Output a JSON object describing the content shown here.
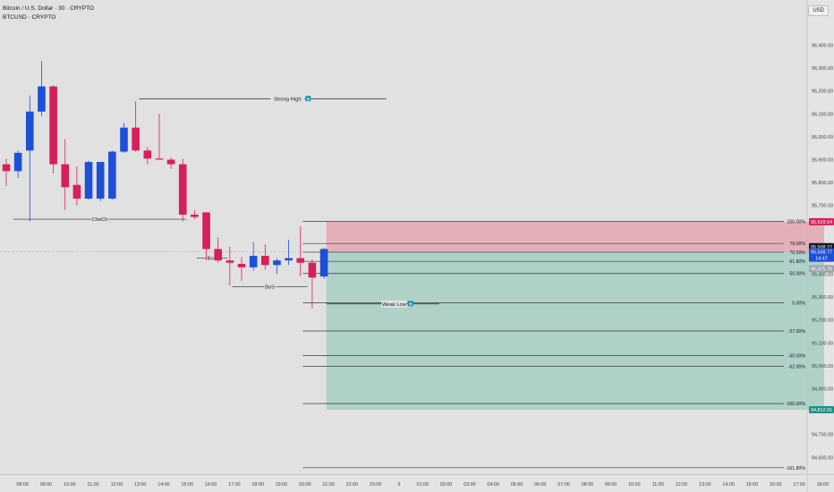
{
  "header": {
    "title": "Bitcoin / U.S. Dollar · 30 · CRYPTO",
    "subtitle": "BTCUSD · CRYPTO"
  },
  "currency_badge": "USD",
  "colors": {
    "background": "#e1e1e1",
    "up": "#1e4fd8",
    "down": "#d81e5b",
    "stop_zone": "#e3a7b2",
    "target_zone": "#a6cec3",
    "fib_line": "#3a3a3a",
    "level_line": "#2a2a2a"
  },
  "chart_data": {
    "type": "candlestick",
    "ylim": [
      94600,
      96500
    ],
    "y_ticks": [
      94600,
      94700,
      94900,
      95000,
      95100,
      95200,
      95300,
      95400,
      95700,
      95800,
      95900,
      96000,
      96100,
      96200,
      96300,
      96400
    ],
    "y_tick_labels": [
      "94,600.00",
      "94,700.00",
      "94,900.00",
      "95,000.00",
      "95,100.00",
      "95,200.00",
      "95,300.00",
      "95,400.00",
      "95,700.00",
      "95,800.00",
      "95,900.00",
      "96,000.00",
      "96,100.00",
      "96,200.00",
      "96,300.00",
      "96,400.00"
    ],
    "x_ticks": [
      {
        "label": "08:00",
        "i": 1
      },
      {
        "label": "09:00",
        "i": 3
      },
      {
        "label": "10:00",
        "i": 5
      },
      {
        "label": "11:00",
        "i": 7
      },
      {
        "label": "12:00",
        "i": 9
      },
      {
        "label": "13:00",
        "i": 11
      },
      {
        "label": "14:00",
        "i": 13
      },
      {
        "label": "15:00",
        "i": 15
      },
      {
        "label": "16:00",
        "i": 17
      },
      {
        "label": "17:00",
        "i": 19
      },
      {
        "label": "18:00",
        "i": 21
      },
      {
        "label": "19:00",
        "i": 23
      },
      {
        "label": "20:00",
        "i": 25
      },
      {
        "label": "21:00",
        "i": 27
      },
      {
        "label": "22:00",
        "i": 29
      },
      {
        "label": "23:00",
        "i": 31
      },
      {
        "label": "5",
        "i": 33
      },
      {
        "label": "01:00",
        "i": 35
      },
      {
        "label": "02:00",
        "i": 37
      },
      {
        "label": "03:00",
        "i": 39
      },
      {
        "label": "04:00",
        "i": 41
      },
      {
        "label": "05:00",
        "i": 43
      },
      {
        "label": "06:00",
        "i": 45
      },
      {
        "label": "07:00",
        "i": 47
      },
      {
        "label": "08:00",
        "i": 49
      },
      {
        "label": "09:00",
        "i": 51
      },
      {
        "label": "10:00",
        "i": 53
      },
      {
        "label": "11:00",
        "i": 55
      },
      {
        "label": "12:00",
        "i": 57
      },
      {
        "label": "13:00",
        "i": 59
      },
      {
        "label": "14:00",
        "i": 61
      },
      {
        "label": "15:00",
        "i": 63
      },
      {
        "label": "16:00",
        "i": 65
      },
      {
        "label": "17:00",
        "i": 67
      },
      {
        "label": "18:00",
        "i": 69
      }
    ],
    "candles": [
      {
        "i": 0,
        "o": 95880,
        "h": 95905,
        "l": 95785,
        "c": 95850
      },
      {
        "i": 1,
        "o": 95850,
        "h": 95940,
        "l": 95820,
        "c": 95930
      },
      {
        "i": 2,
        "o": 95940,
        "h": 96180,
        "l": 95630,
        "c": 96110
      },
      {
        "i": 3,
        "o": 96110,
        "h": 96330,
        "l": 96090,
        "c": 96220
      },
      {
        "i": 4,
        "o": 96220,
        "h": 96225,
        "l": 95840,
        "c": 95880
      },
      {
        "i": 5,
        "o": 95880,
        "h": 95990,
        "l": 95680,
        "c": 95780
      },
      {
        "i": 6,
        "o": 95790,
        "h": 95870,
        "l": 95700,
        "c": 95730
      },
      {
        "i": 7,
        "o": 95730,
        "h": 95895,
        "l": 95725,
        "c": 95890
      },
      {
        "i": 8,
        "o": 95730,
        "h": 95890,
        "l": 95720,
        "c": 95890
      },
      {
        "i": 9,
        "o": 95730,
        "h": 95940,
        "l": 95725,
        "c": 95935
      },
      {
        "i": 10,
        "o": 95935,
        "h": 96060,
        "l": 95930,
        "c": 96040
      },
      {
        "i": 11,
        "o": 96040,
        "h": 96155,
        "l": 95935,
        "c": 95940
      },
      {
        "i": 12,
        "o": 95940,
        "h": 95955,
        "l": 95880,
        "c": 95905
      },
      {
        "i": 13,
        "o": 95905,
        "h": 96100,
        "l": 95900,
        "c": 95900
      },
      {
        "i": 14,
        "o": 95900,
        "h": 95910,
        "l": 95860,
        "c": 95880
      },
      {
        "i": 15,
        "o": 95880,
        "h": 95905,
        "l": 95630,
        "c": 95660
      },
      {
        "i": 16,
        "o": 95660,
        "h": 95680,
        "l": 95640,
        "c": 95650
      },
      {
        "i": 17,
        "o": 95670,
        "h": 95670,
        "l": 95460,
        "c": 95510
      },
      {
        "i": 18,
        "o": 95510,
        "h": 95560,
        "l": 95450,
        "c": 95460
      },
      {
        "i": 19,
        "o": 95460,
        "h": 95520,
        "l": 95350,
        "c": 95450
      },
      {
        "i": 20,
        "o": 95445,
        "h": 95475,
        "l": 95370,
        "c": 95430
      },
      {
        "i": 21,
        "o": 95430,
        "h": 95540,
        "l": 95415,
        "c": 95480
      },
      {
        "i": 22,
        "o": 95480,
        "h": 95530,
        "l": 95420,
        "c": 95440
      },
      {
        "i": 23,
        "o": 95440,
        "h": 95470,
        "l": 95400,
        "c": 95460
      },
      {
        "i": 24,
        "o": 95460,
        "h": 95550,
        "l": 95440,
        "c": 95470
      },
      {
        "i": 25,
        "o": 95470,
        "h": 95610,
        "l": 95390,
        "c": 95450
      },
      {
        "i": 26,
        "o": 95450,
        "h": 95465,
        "l": 95250,
        "c": 95385
      },
      {
        "i": 27,
        "o": 95390,
        "h": 95515,
        "l": 95380,
        "c": 95510
      }
    ],
    "structure_labels": [
      {
        "text": "Strong High",
        "icon": "▼",
        "price": 96165,
        "x_from": 11.3,
        "x_to": 32.3
      },
      {
        "text": "ChoCh",
        "price": 95640,
        "x_from": 0.6,
        "x_to": 15.3
      },
      {
        "text": "BoS",
        "price": 95470,
        "x_from": 16.2,
        "x_to": 18.8
      },
      {
        "text": "BoS",
        "price": 95345,
        "x_from": 19.2,
        "x_to": 25.6
      },
      {
        "text": "Weak Low",
        "icon": "▼",
        "price": 95270,
        "x_from": 27.2,
        "x_to": 36.8
      }
    ],
    "fib_levels": [
      {
        "label": "100.00%",
        "price": 95630
      },
      {
        "label": "79.00%",
        "price": 95534
      },
      {
        "label": "70.50%",
        "price": 95496
      },
      {
        "label": "61.80%",
        "price": 95456
      },
      {
        "label": "50.00%",
        "price": 95403
      },
      {
        "label": "0.00%",
        "price": 95275
      },
      {
        "label": "-27.00%",
        "price": 95152
      },
      {
        "label": "-50.00%",
        "price": 95045
      },
      {
        "label": "-62.00%",
        "price": 94998
      },
      {
        "label": "-100.00%",
        "price": 94835
      },
      {
        "label": "-161.80%",
        "price": 94555
      }
    ],
    "position": {
      "entry": 95496,
      "stop": 95629,
      "target": 94808,
      "x_from": 27.2,
      "x_to": 69.5
    },
    "price_labels": [
      {
        "text": "95,629.54",
        "price": 95629,
        "bg": "#d81e5b"
      },
      {
        "text": "95,508.77",
        "price": 95520,
        "bg": "#131722"
      },
      {
        "text": "95,508.77",
        "price": 95497,
        "bg": "#1e4fd8"
      },
      {
        "text": "14:47",
        "price": 95470,
        "bg": "#1e4fd8"
      },
      {
        "text": "95,475.78",
        "price": 95424,
        "bg": "#9ea2b0"
      },
      {
        "text": "94,812.91",
        "price": 94808,
        "bg": "#1f8f84"
      }
    ]
  }
}
